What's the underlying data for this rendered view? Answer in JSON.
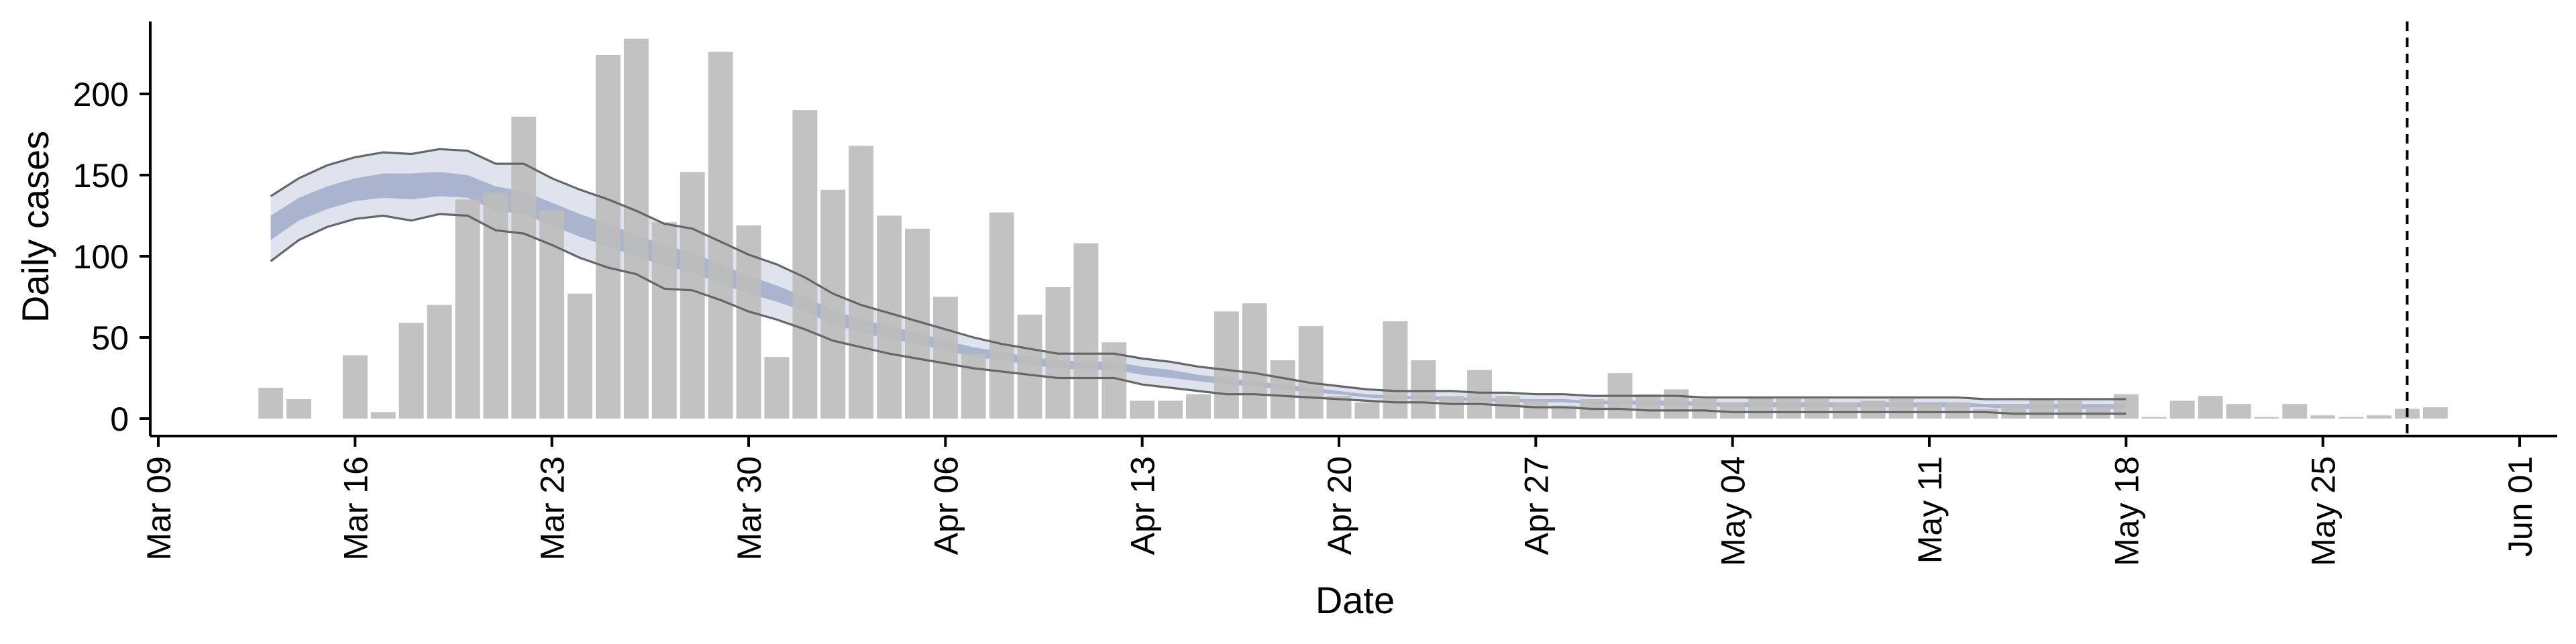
{
  "chart_data": {
    "type": "bar",
    "title": "",
    "xlabel": "Date",
    "ylabel": "Daily cases",
    "xlim": [
      "2020-03-09",
      "2020-06-01"
    ],
    "ylim": [
      -5,
      248
    ],
    "grid": false,
    "colors": {
      "bars": "#bdbdbd",
      "outer_band": "#dfe3ee",
      "inner_band": "#aab4cf",
      "band_lines": "#666666",
      "axis": "#000000"
    },
    "x_ticks": [
      "2020-03-09",
      "2020-03-16",
      "2020-03-23",
      "2020-03-30",
      "2020-04-06",
      "2020-04-13",
      "2020-04-20",
      "2020-04-27",
      "2020-05-04",
      "2020-05-11",
      "2020-05-18",
      "2020-05-25",
      "2020-06-01"
    ],
    "x_tick_labels": [
      "Mar 09",
      "Mar 16",
      "Mar 23",
      "Mar 30",
      "Apr 06",
      "Apr 13",
      "Apr 20",
      "Apr 27",
      "May 04",
      "May 11",
      "May 18",
      "May 25",
      "Jun 01"
    ],
    "y_ticks": [
      0,
      50,
      100,
      150,
      200
    ],
    "y_tick_labels": [
      "0",
      "50",
      "100",
      "150",
      "200"
    ],
    "reference_line": {
      "date": "2020-05-28",
      "style": "dashed"
    },
    "bars": [
      {
        "date": "2020-03-13",
        "value": 19
      },
      {
        "date": "2020-03-14",
        "value": 12
      },
      {
        "date": "2020-03-15",
        "value": 0
      },
      {
        "date": "2020-03-16",
        "value": 39
      },
      {
        "date": "2020-03-17",
        "value": 4
      },
      {
        "date": "2020-03-18",
        "value": 59
      },
      {
        "date": "2020-03-19",
        "value": 70
      },
      {
        "date": "2020-03-20",
        "value": 135
      },
      {
        "date": "2020-03-21",
        "value": 139
      },
      {
        "date": "2020-03-22",
        "value": 186
      },
      {
        "date": "2020-03-23",
        "value": 128
      },
      {
        "date": "2020-03-24",
        "value": 77
      },
      {
        "date": "2020-03-25",
        "value": 224
      },
      {
        "date": "2020-03-26",
        "value": 234
      },
      {
        "date": "2020-03-27",
        "value": 121
      },
      {
        "date": "2020-03-28",
        "value": 152
      },
      {
        "date": "2020-03-29",
        "value": 226
      },
      {
        "date": "2020-03-30",
        "value": 119
      },
      {
        "date": "2020-03-31",
        "value": 38
      },
      {
        "date": "2020-04-01",
        "value": 190
      },
      {
        "date": "2020-04-02",
        "value": 141
      },
      {
        "date": "2020-04-03",
        "value": 168
      },
      {
        "date": "2020-04-04",
        "value": 125
      },
      {
        "date": "2020-04-05",
        "value": 117
      },
      {
        "date": "2020-04-06",
        "value": 75
      },
      {
        "date": "2020-04-07",
        "value": 40
      },
      {
        "date": "2020-04-08",
        "value": 127
      },
      {
        "date": "2020-04-09",
        "value": 64
      },
      {
        "date": "2020-04-10",
        "value": 81
      },
      {
        "date": "2020-04-11",
        "value": 108
      },
      {
        "date": "2020-04-12",
        "value": 47
      },
      {
        "date": "2020-04-13",
        "value": 11
      },
      {
        "date": "2020-04-14",
        "value": 11
      },
      {
        "date": "2020-04-15",
        "value": 15
      },
      {
        "date": "2020-04-16",
        "value": 66
      },
      {
        "date": "2020-04-17",
        "value": 71
      },
      {
        "date": "2020-04-18",
        "value": 36
      },
      {
        "date": "2020-04-19",
        "value": 57
      },
      {
        "date": "2020-04-20",
        "value": 14
      },
      {
        "date": "2020-04-21",
        "value": 10
      },
      {
        "date": "2020-04-22",
        "value": 60
      },
      {
        "date": "2020-04-23",
        "value": 36
      },
      {
        "date": "2020-04-24",
        "value": 14
      },
      {
        "date": "2020-04-25",
        "value": 30
      },
      {
        "date": "2020-04-26",
        "value": 14
      },
      {
        "date": "2020-04-27",
        "value": 11
      },
      {
        "date": "2020-04-28",
        "value": 8
      },
      {
        "date": "2020-04-29",
        "value": 12
      },
      {
        "date": "2020-04-30",
        "value": 28
      },
      {
        "date": "2020-05-01",
        "value": 15
      },
      {
        "date": "2020-05-02",
        "value": 18
      },
      {
        "date": "2020-05-03",
        "value": 12
      },
      {
        "date": "2020-05-04",
        "value": 10
      },
      {
        "date": "2020-05-05",
        "value": 13
      },
      {
        "date": "2020-05-06",
        "value": 12
      },
      {
        "date": "2020-05-07",
        "value": 12
      },
      {
        "date": "2020-05-08",
        "value": 10
      },
      {
        "date": "2020-05-09",
        "value": 11
      },
      {
        "date": "2020-05-10",
        "value": 12
      },
      {
        "date": "2020-05-11",
        "value": 9
      },
      {
        "date": "2020-05-12",
        "value": 10
      },
      {
        "date": "2020-05-13",
        "value": 6
      },
      {
        "date": "2020-05-14",
        "value": 8
      },
      {
        "date": "2020-05-15",
        "value": 12
      },
      {
        "date": "2020-05-16",
        "value": 11
      },
      {
        "date": "2020-05-17",
        "value": 7
      },
      {
        "date": "2020-05-18",
        "value": 15
      },
      {
        "date": "2020-05-19",
        "value": 1
      },
      {
        "date": "2020-05-20",
        "value": 11
      },
      {
        "date": "2020-05-21",
        "value": 14
      },
      {
        "date": "2020-05-22",
        "value": 9
      },
      {
        "date": "2020-05-23",
        "value": 1
      },
      {
        "date": "2020-05-24",
        "value": 9
      },
      {
        "date": "2020-05-25",
        "value": 2
      },
      {
        "date": "2020-05-26",
        "value": 1
      },
      {
        "date": "2020-05-27",
        "value": 2
      },
      {
        "date": "2020-05-28",
        "value": 6
      },
      {
        "date": "2020-05-29",
        "value": 7
      }
    ],
    "band_dates": [
      "2020-03-13",
      "2020-03-14",
      "2020-03-15",
      "2020-03-16",
      "2020-03-17",
      "2020-03-18",
      "2020-03-19",
      "2020-03-20",
      "2020-03-21",
      "2020-03-22",
      "2020-03-23",
      "2020-03-24",
      "2020-03-25",
      "2020-03-26",
      "2020-03-27",
      "2020-03-28",
      "2020-03-29",
      "2020-03-30",
      "2020-03-31",
      "2020-04-01",
      "2020-04-02",
      "2020-04-03",
      "2020-04-04",
      "2020-04-05",
      "2020-04-06",
      "2020-04-07",
      "2020-04-08",
      "2020-04-09",
      "2020-04-10",
      "2020-04-11",
      "2020-04-12",
      "2020-04-13",
      "2020-04-14",
      "2020-04-15",
      "2020-04-16",
      "2020-04-17",
      "2020-04-18",
      "2020-04-19",
      "2020-04-20",
      "2020-04-21",
      "2020-04-22",
      "2020-04-23",
      "2020-04-24",
      "2020-04-25",
      "2020-04-26",
      "2020-04-27",
      "2020-04-28",
      "2020-04-29",
      "2020-04-30",
      "2020-05-01",
      "2020-05-02",
      "2020-05-03",
      "2020-05-04",
      "2020-05-05",
      "2020-05-06",
      "2020-05-07",
      "2020-05-08",
      "2020-05-09",
      "2020-05-10",
      "2020-05-11",
      "2020-05-12",
      "2020-05-13",
      "2020-05-14",
      "2020-05-15",
      "2020-05-16",
      "2020-05-17",
      "2020-05-18"
    ],
    "band_outer_upper": [
      137,
      148,
      156,
      161,
      164,
      163,
      166,
      165,
      157,
      157,
      148,
      141,
      135,
      128,
      120,
      117,
      109,
      101,
      95,
      87,
      77,
      70,
      65,
      60,
      55,
      50,
      46,
      43,
      40,
      40,
      40,
      37,
      35,
      32,
      30,
      28,
      25,
      22,
      20,
      18,
      17,
      17,
      17,
      16,
      16,
      15,
      15,
      14,
      14,
      14,
      14,
      13,
      13,
      13,
      13,
      13,
      13,
      13,
      13,
      13,
      13,
      12,
      12,
      12,
      12,
      12,
      12
    ],
    "band_outer_lower": [
      97,
      110,
      118,
      123,
      125,
      122,
      126,
      125,
      116,
      114,
      107,
      99,
      93,
      89,
      80,
      79,
      73,
      66,
      61,
      55,
      48,
      44,
      40,
      37,
      34,
      31,
      29,
      27,
      25,
      25,
      25,
      21,
      19,
      17,
      15,
      15,
      14,
      13,
      12,
      11,
      10,
      10,
      9,
      9,
      8,
      7,
      7,
      6,
      6,
      5,
      5,
      5,
      4,
      4,
      4,
      4,
      4,
      4,
      4,
      4,
      4,
      4,
      3,
      3,
      3,
      3,
      3
    ],
    "band_inner_upper": [
      125,
      136,
      143,
      148,
      151,
      151,
      152,
      150,
      143,
      140,
      133,
      126,
      120,
      113,
      107,
      102,
      95,
      88,
      82,
      75,
      67,
      61,
      57,
      53,
      48,
      44,
      41,
      38,
      36,
      35,
      35,
      32,
      30,
      27,
      25,
      23,
      21,
      19,
      17,
      15,
      14,
      14,
      13,
      13,
      12,
      12,
      12,
      11,
      11,
      11,
      11,
      10,
      10,
      10,
      10,
      10,
      10,
      10,
      10,
      10,
      10,
      9,
      9,
      9,
      9,
      9,
      9
    ],
    "band_inner_lower": [
      110,
      122,
      129,
      134,
      136,
      135,
      137,
      136,
      128,
      126,
      119,
      112,
      106,
      100,
      94,
      90,
      83,
      77,
      72,
      66,
      58,
      53,
      49,
      46,
      42,
      38,
      36,
      33,
      31,
      30,
      30,
      27,
      25,
      23,
      21,
      20,
      18,
      16,
      15,
      13,
      12,
      12,
      11,
      11,
      10,
      10,
      10,
      9,
      9,
      8,
      8,
      8,
      7,
      7,
      7,
      7,
      7,
      7,
      7,
      7,
      7,
      7,
      6,
      6,
      6,
      6,
      6
    ]
  }
}
